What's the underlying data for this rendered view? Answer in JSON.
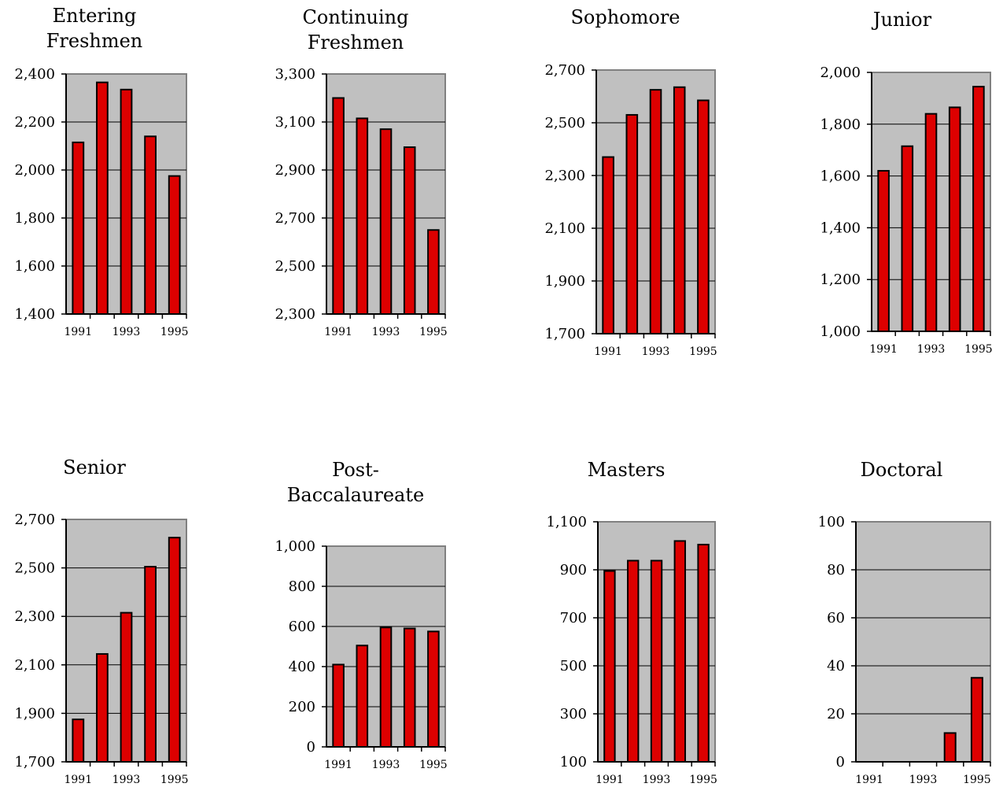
{
  "colors": {
    "plot_background": "#c0c0c0",
    "bar_fill": "#dd0000",
    "bar_stroke": "#000000",
    "gridline": "#000000",
    "plot_border": "#808080"
  },
  "chart_data": [
    {
      "type": "bar",
      "title": [
        "Entering",
        "Freshmen"
      ],
      "categories": [
        "1991",
        "1992",
        "1993",
        "1994",
        "1995"
      ],
      "x_tick_labels": [
        "1991",
        "1993",
        "1995"
      ],
      "values": [
        2115,
        2365,
        2335,
        2140,
        1975
      ],
      "ylim": [
        1400,
        2400
      ],
      "y_ticks": [
        "1,400",
        "1,600",
        "1,800",
        "2,000",
        "2,200",
        "2,400"
      ],
      "grid": true
    },
    {
      "type": "bar",
      "title": [
        "Continuing",
        "Freshmen"
      ],
      "categories": [
        "1991",
        "1992",
        "1993",
        "1994",
        "1995"
      ],
      "x_tick_labels": [
        "1991",
        "1993",
        "1995"
      ],
      "values": [
        3200,
        3115,
        3070,
        2995,
        2650
      ],
      "ylim": [
        2300,
        3300
      ],
      "y_ticks": [
        "2,300",
        "2,500",
        "2,700",
        "2,900",
        "3,100",
        "3,300"
      ],
      "grid": true
    },
    {
      "type": "bar",
      "title": [
        "Sophomore"
      ],
      "categories": [
        "1991",
        "1992",
        "1993",
        "1994",
        "1995"
      ],
      "x_tick_labels": [
        "1991",
        "1993",
        "1995"
      ],
      "values": [
        2370,
        2530,
        2625,
        2635,
        2585
      ],
      "ylim": [
        1700,
        2700
      ],
      "y_ticks": [
        "1,700",
        "1,900",
        "2,100",
        "2,300",
        "2,500",
        "2,700"
      ],
      "grid": true
    },
    {
      "type": "bar",
      "title": [
        "Junior"
      ],
      "categories": [
        "1991",
        "1992",
        "1993",
        "1994",
        "1995"
      ],
      "x_tick_labels": [
        "1991",
        "1993",
        "1995"
      ],
      "values": [
        1620,
        1715,
        1840,
        1865,
        1945
      ],
      "ylim": [
        1000,
        2000
      ],
      "y_ticks": [
        "1,000",
        "1,200",
        "1,400",
        "1,600",
        "1,800",
        "2,000"
      ],
      "grid": true
    },
    {
      "type": "bar",
      "title": [
        "Senior"
      ],
      "categories": [
        "1991",
        "1992",
        "1993",
        "1994",
        "1995"
      ],
      "x_tick_labels": [
        "1991",
        "1993",
        "1995"
      ],
      "values": [
        1875,
        2145,
        2315,
        2505,
        2625
      ],
      "ylim": [
        1700,
        2700
      ],
      "y_ticks": [
        "1,700",
        "1,900",
        "2,100",
        "2,300",
        "2,500",
        "2,700"
      ],
      "grid": true
    },
    {
      "type": "bar",
      "title": [
        "Post-",
        "Baccalaureate"
      ],
      "categories": [
        "1991",
        "1992",
        "1993",
        "1994",
        "1995"
      ],
      "x_tick_labels": [
        "1991",
        "1993",
        "1995"
      ],
      "values": [
        410,
        505,
        595,
        590,
        575
      ],
      "ylim": [
        0,
        1000
      ],
      "y_ticks": [
        "0",
        "200",
        "400",
        "600",
        "800",
        "1,000"
      ],
      "grid": true
    },
    {
      "type": "bar",
      "title": [
        "Masters"
      ],
      "categories": [
        "1991",
        "1992",
        "1993",
        "1994",
        "1995"
      ],
      "x_tick_labels": [
        "1991",
        "1993",
        "1995"
      ],
      "values": [
        895,
        938,
        938,
        1020,
        1005
      ],
      "ylim": [
        100,
        1100
      ],
      "y_ticks": [
        "100",
        "300",
        "500",
        "700",
        "900",
        "1,100"
      ],
      "grid": true
    },
    {
      "type": "bar",
      "title": [
        "Doctoral"
      ],
      "categories": [
        "1991",
        "1992",
        "1993",
        "1994",
        "1995"
      ],
      "x_tick_labels": [
        "1991",
        "1993",
        "1995"
      ],
      "values": [
        null,
        null,
        null,
        12,
        35
      ],
      "ylim": [
        0,
        100
      ],
      "y_ticks": [
        "0",
        "20",
        "40",
        "60",
        "80",
        "100"
      ],
      "grid": true
    }
  ]
}
